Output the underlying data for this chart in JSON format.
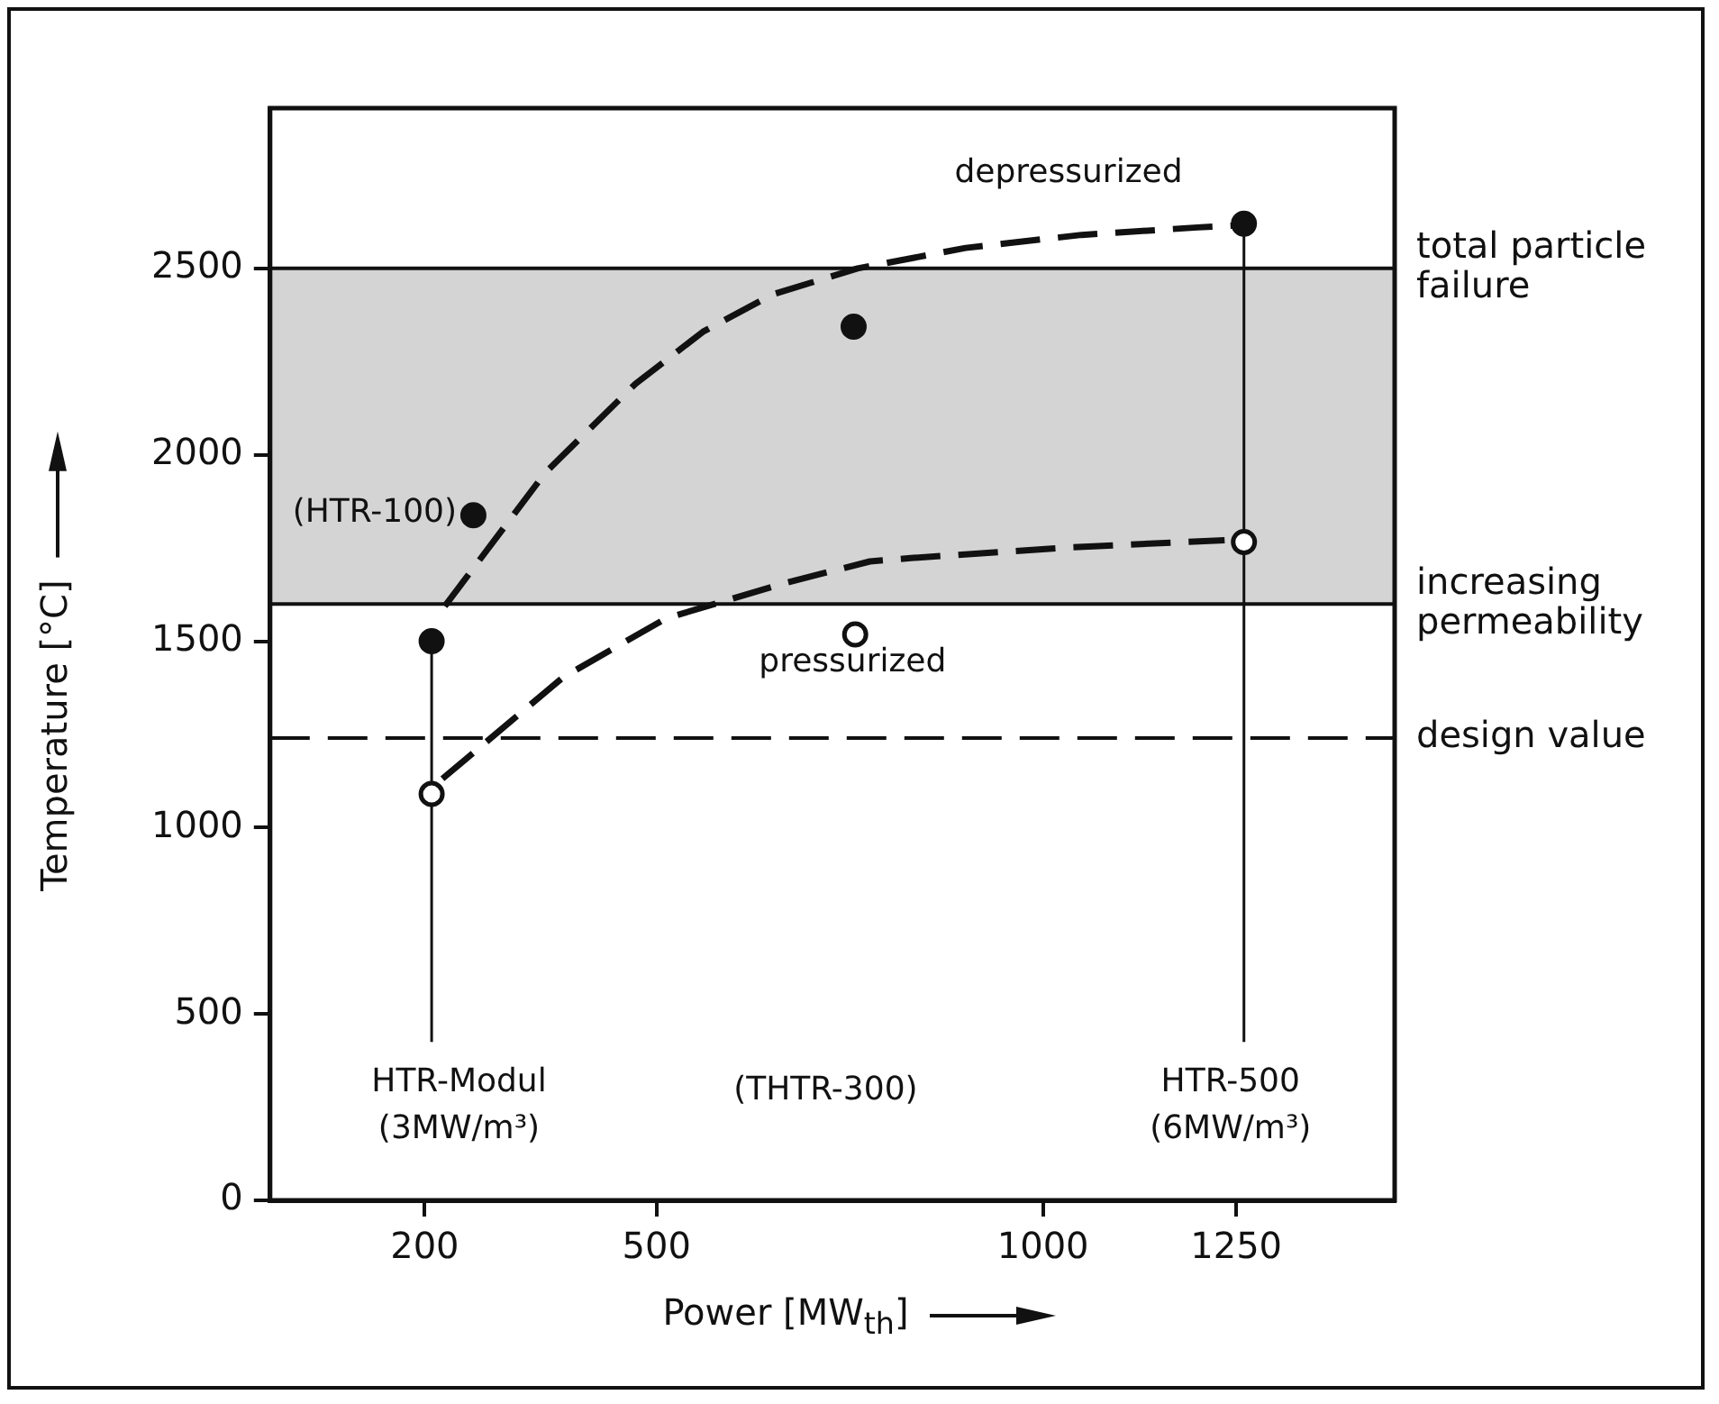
{
  "chart_data": {
    "type": "line",
    "xlabel": "Power [MW$_{th}$]",
    "ylabel": "Temperature [°C]",
    "xlim": [
      0,
      1455
    ],
    "xticks": [
      200,
      500,
      1000,
      1250
    ],
    "ylim": [
      0,
      2930
    ],
    "yticks": [
      0,
      500,
      1000,
      1500,
      2000,
      2500
    ],
    "grid": false,
    "legend": false,
    "series": [
      {
        "color": "#111111",
        "line_style": "dashed",
        "marker": "none",
        "x": [
          226,
          356,
          473,
          560,
          650,
          760,
          900,
          1050,
          1200,
          1250
        ],
        "values": [
          1594,
          1952,
          2191,
          2330,
          2430,
          2500,
          2555,
          2590,
          2610,
          2615
        ]
      },
      {
        "color": "#111111",
        "line_style": "dashed",
        "marker": "none",
        "x": [
          223,
          379,
          512,
          666,
          776,
          829,
          1039,
          1235
        ],
        "values": [
          1131,
          1403,
          1561,
          1656,
          1714,
          1723,
          1752,
          1771
        ]
      },
      {
        "color": "#111111",
        "line_style": "solid",
        "marker": "none",
        "x": [
          209,
          209
        ],
        "values": [
          425,
          1500
        ]
      },
      {
        "color": "#111111",
        "line_style": "solid",
        "marker": "none",
        "x": [
          1260,
          1260
        ],
        "values": [
          425,
          2620
        ]
      },
      {
        "type": "scatter",
        "color": "#111111",
        "marker": "circle",
        "x": [
          209,
          263,
          755,
          1260
        ],
        "values": [
          1500,
          1838,
          2344,
          2620
        ]
      },
      {
        "type": "scatter",
        "color": "#ffffff",
        "marker": "circle",
        "x": [
          209,
          757,
          1260
        ],
        "values": [
          1090,
          1518,
          1766
        ]
      }
    ],
    "bands": [
      {
        "axis": "y",
        "from": 1600,
        "to": 2500,
        "color": "#d4d4d4"
      }
    ],
    "ref_lines": [
      {
        "axis": "y",
        "value": 2500,
        "label": "total particle failure",
        "line_style": "solid"
      },
      {
        "axis": "y",
        "value": 1600,
        "label": "increasing permeability",
        "line_style": "solid"
      },
      {
        "axis": "y",
        "value": 1240,
        "label": "design value",
        "line_style": "dashed"
      }
    ],
    "annotations": [
      "depressurized",
      "pressurized",
      "(HTR-100)",
      "HTR-Modul\n(3MW/m³)",
      "(THTR-300)",
      "HTR-500\n(6MW/m³)"
    ]
  }
}
